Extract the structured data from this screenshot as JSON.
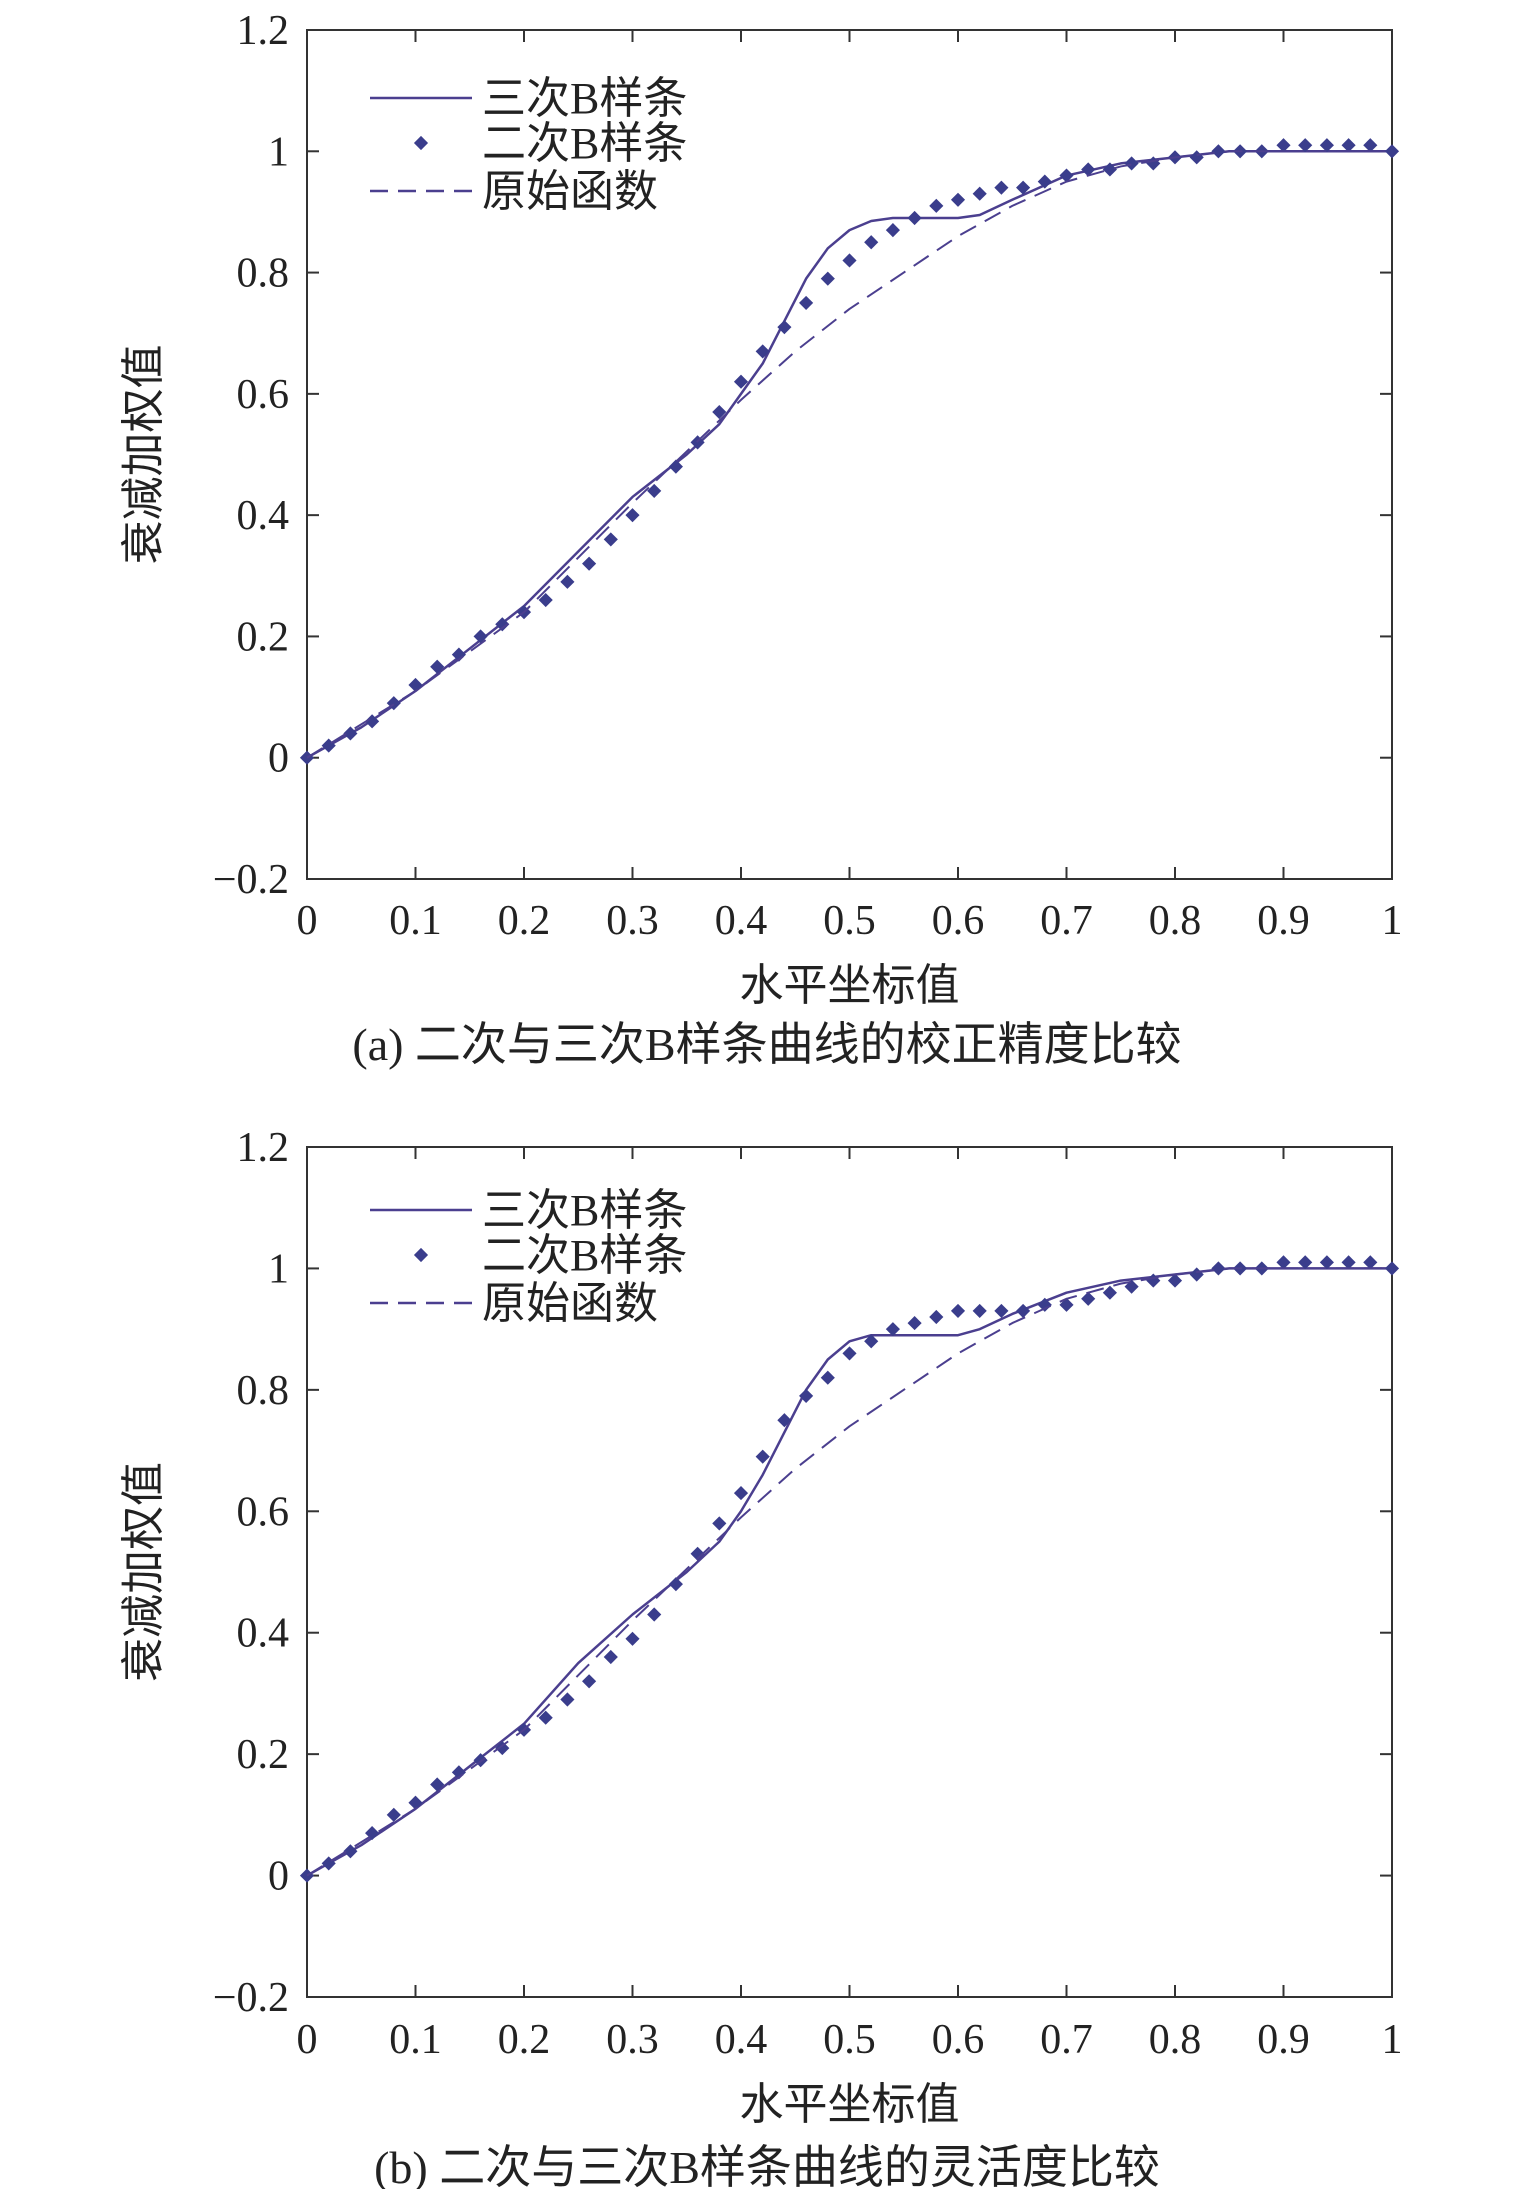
{
  "colors": {
    "series": "#4b3f8f",
    "dots": "#3a3d8c",
    "axis": "#333333"
  },
  "chart_data": [
    {
      "type": "line",
      "title": "(a) 二次与三次B样条曲线的校正精度比较",
      "xlabel": "水平坐标值",
      "ylabel": "衰减加权值",
      "xlim": [
        0,
        1
      ],
      "ylim": [
        -0.2,
        1.2
      ],
      "xticks": [
        "0",
        "0.1",
        "0.2",
        "0.3",
        "0.4",
        "0.5",
        "0.6",
        "0.7",
        "0.8",
        "0.9",
        "1"
      ],
      "yticks": [
        "−0.2",
        "0",
        "0.2",
        "0.4",
        "0.6",
        "0.8",
        "1",
        "1.2"
      ],
      "legend_position": "top-left",
      "series": [
        {
          "name": "三次B样条",
          "style": "solid",
          "x": [
            0,
            0.05,
            0.1,
            0.15,
            0.2,
            0.25,
            0.3,
            0.35,
            0.38,
            0.4,
            0.42,
            0.44,
            0.46,
            0.48,
            0.5,
            0.52,
            0.54,
            0.56,
            0.58,
            0.6,
            0.62,
            0.65,
            0.7,
            0.75,
            0.8,
            0.85,
            0.9,
            0.95,
            1.0
          ],
          "y": [
            0,
            0.05,
            0.11,
            0.18,
            0.25,
            0.34,
            0.43,
            0.5,
            0.55,
            0.6,
            0.65,
            0.72,
            0.79,
            0.84,
            0.87,
            0.885,
            0.89,
            0.89,
            0.89,
            0.89,
            0.895,
            0.92,
            0.96,
            0.98,
            0.99,
            1.0,
            1.0,
            1.0,
            1.0
          ]
        },
        {
          "name": "二次B样条",
          "style": "dots",
          "x": [
            0.0,
            0.02,
            0.04,
            0.06,
            0.08,
            0.1,
            0.12,
            0.14,
            0.16,
            0.18,
            0.2,
            0.22,
            0.24,
            0.26,
            0.28,
            0.3,
            0.32,
            0.34,
            0.36,
            0.38,
            0.4,
            0.42,
            0.44,
            0.46,
            0.48,
            0.5,
            0.52,
            0.54,
            0.56,
            0.58,
            0.6,
            0.62,
            0.64,
            0.66,
            0.68,
            0.7,
            0.72,
            0.74,
            0.76,
            0.78,
            0.8,
            0.82,
            0.84,
            0.86,
            0.88,
            0.9,
            0.92,
            0.94,
            0.96,
            0.98,
            1.0
          ],
          "y": [
            0.0,
            0.02,
            0.04,
            0.06,
            0.09,
            0.12,
            0.15,
            0.17,
            0.2,
            0.22,
            0.24,
            0.26,
            0.29,
            0.32,
            0.36,
            0.4,
            0.44,
            0.48,
            0.52,
            0.57,
            0.62,
            0.67,
            0.71,
            0.75,
            0.79,
            0.82,
            0.85,
            0.87,
            0.89,
            0.91,
            0.92,
            0.93,
            0.94,
            0.94,
            0.95,
            0.96,
            0.97,
            0.97,
            0.98,
            0.98,
            0.99,
            0.99,
            1.0,
            1.0,
            1.0,
            1.01,
            1.01,
            1.01,
            1.01,
            1.01,
            1.0
          ]
        },
        {
          "name": "原始函数",
          "style": "dashed",
          "x": [
            0,
            0.1,
            0.2,
            0.3,
            0.4,
            0.45,
            0.5,
            0.55,
            0.6,
            0.65,
            0.7,
            0.75,
            0.8,
            0.85,
            0.9,
            0.95,
            1.0
          ],
          "y": [
            0,
            0.11,
            0.24,
            0.42,
            0.59,
            0.67,
            0.74,
            0.8,
            0.86,
            0.91,
            0.95,
            0.975,
            0.99,
            1.0,
            1.0,
            1.0,
            1.0
          ]
        }
      ]
    },
    {
      "type": "line",
      "title": "(b) 二次与三次B样条曲线的灵活度比较",
      "xlabel": "水平坐标值",
      "ylabel": "衰减加权值",
      "xlim": [
        0,
        1
      ],
      "ylim": [
        -0.2,
        1.2
      ],
      "xticks": [
        "0",
        "0.1",
        "0.2",
        "0.3",
        "0.4",
        "0.5",
        "0.6",
        "0.7",
        "0.8",
        "0.9",
        "1"
      ],
      "yticks": [
        "−0.2",
        "0",
        "0.2",
        "0.4",
        "0.6",
        "0.8",
        "1",
        "1.2"
      ],
      "legend_position": "top-left",
      "series": [
        {
          "name": "三次B样条",
          "style": "solid",
          "x": [
            0,
            0.05,
            0.1,
            0.15,
            0.2,
            0.25,
            0.3,
            0.35,
            0.38,
            0.4,
            0.42,
            0.44,
            0.46,
            0.48,
            0.5,
            0.52,
            0.54,
            0.56,
            0.58,
            0.6,
            0.62,
            0.65,
            0.7,
            0.75,
            0.8,
            0.85,
            0.9,
            0.95,
            1.0
          ],
          "y": [
            0,
            0.05,
            0.11,
            0.18,
            0.25,
            0.35,
            0.43,
            0.5,
            0.55,
            0.6,
            0.66,
            0.73,
            0.8,
            0.85,
            0.88,
            0.89,
            0.89,
            0.89,
            0.89,
            0.89,
            0.9,
            0.925,
            0.96,
            0.98,
            0.99,
            1.0,
            1.0,
            1.0,
            1.0
          ]
        },
        {
          "name": "二次B样条",
          "style": "dots",
          "x": [
            0.0,
            0.02,
            0.04,
            0.06,
            0.08,
            0.1,
            0.12,
            0.14,
            0.16,
            0.18,
            0.2,
            0.22,
            0.24,
            0.26,
            0.28,
            0.3,
            0.32,
            0.34,
            0.36,
            0.38,
            0.4,
            0.42,
            0.44,
            0.46,
            0.48,
            0.5,
            0.52,
            0.54,
            0.56,
            0.58,
            0.6,
            0.62,
            0.64,
            0.66,
            0.68,
            0.7,
            0.72,
            0.74,
            0.76,
            0.78,
            0.8,
            0.82,
            0.84,
            0.86,
            0.88,
            0.9,
            0.92,
            0.94,
            0.96,
            0.98,
            1.0
          ],
          "y": [
            0.0,
            0.02,
            0.04,
            0.07,
            0.1,
            0.12,
            0.15,
            0.17,
            0.19,
            0.21,
            0.24,
            0.26,
            0.29,
            0.32,
            0.36,
            0.39,
            0.43,
            0.48,
            0.53,
            0.58,
            0.63,
            0.69,
            0.75,
            0.79,
            0.82,
            0.86,
            0.88,
            0.9,
            0.91,
            0.92,
            0.93,
            0.93,
            0.93,
            0.93,
            0.94,
            0.94,
            0.95,
            0.96,
            0.97,
            0.98,
            0.98,
            0.99,
            1.0,
            1.0,
            1.0,
            1.01,
            1.01,
            1.01,
            1.01,
            1.01,
            1.0
          ]
        },
        {
          "name": "原始函数",
          "style": "dashed",
          "x": [
            0,
            0.1,
            0.2,
            0.3,
            0.4,
            0.45,
            0.5,
            0.55,
            0.6,
            0.65,
            0.7,
            0.75,
            0.8,
            0.85,
            0.9,
            0.95,
            1.0
          ],
          "y": [
            0,
            0.11,
            0.24,
            0.42,
            0.59,
            0.67,
            0.74,
            0.8,
            0.86,
            0.91,
            0.95,
            0.975,
            0.99,
            1.0,
            1.0,
            1.0,
            1.0
          ]
        }
      ]
    }
  ]
}
